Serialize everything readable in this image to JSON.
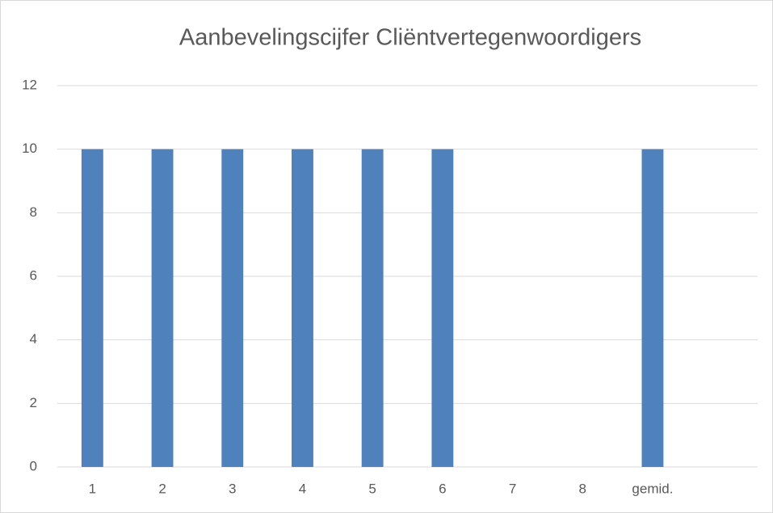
{
  "chart_data": {
    "type": "bar",
    "title": "Aanbevelingscijfer Cliëntvertegenwoordigers",
    "categories": [
      "1",
      "2",
      "3",
      "4",
      "5",
      "6",
      "7",
      "8",
      "gemid.",
      null
    ],
    "values": [
      10,
      10,
      10,
      10,
      10,
      10,
      null,
      null,
      10,
      null
    ],
    "color": "#4f81bd",
    "ylim": [
      0,
      12
    ],
    "yticks": [
      0,
      2,
      4,
      6,
      8,
      10,
      12
    ],
    "grid": true
  }
}
